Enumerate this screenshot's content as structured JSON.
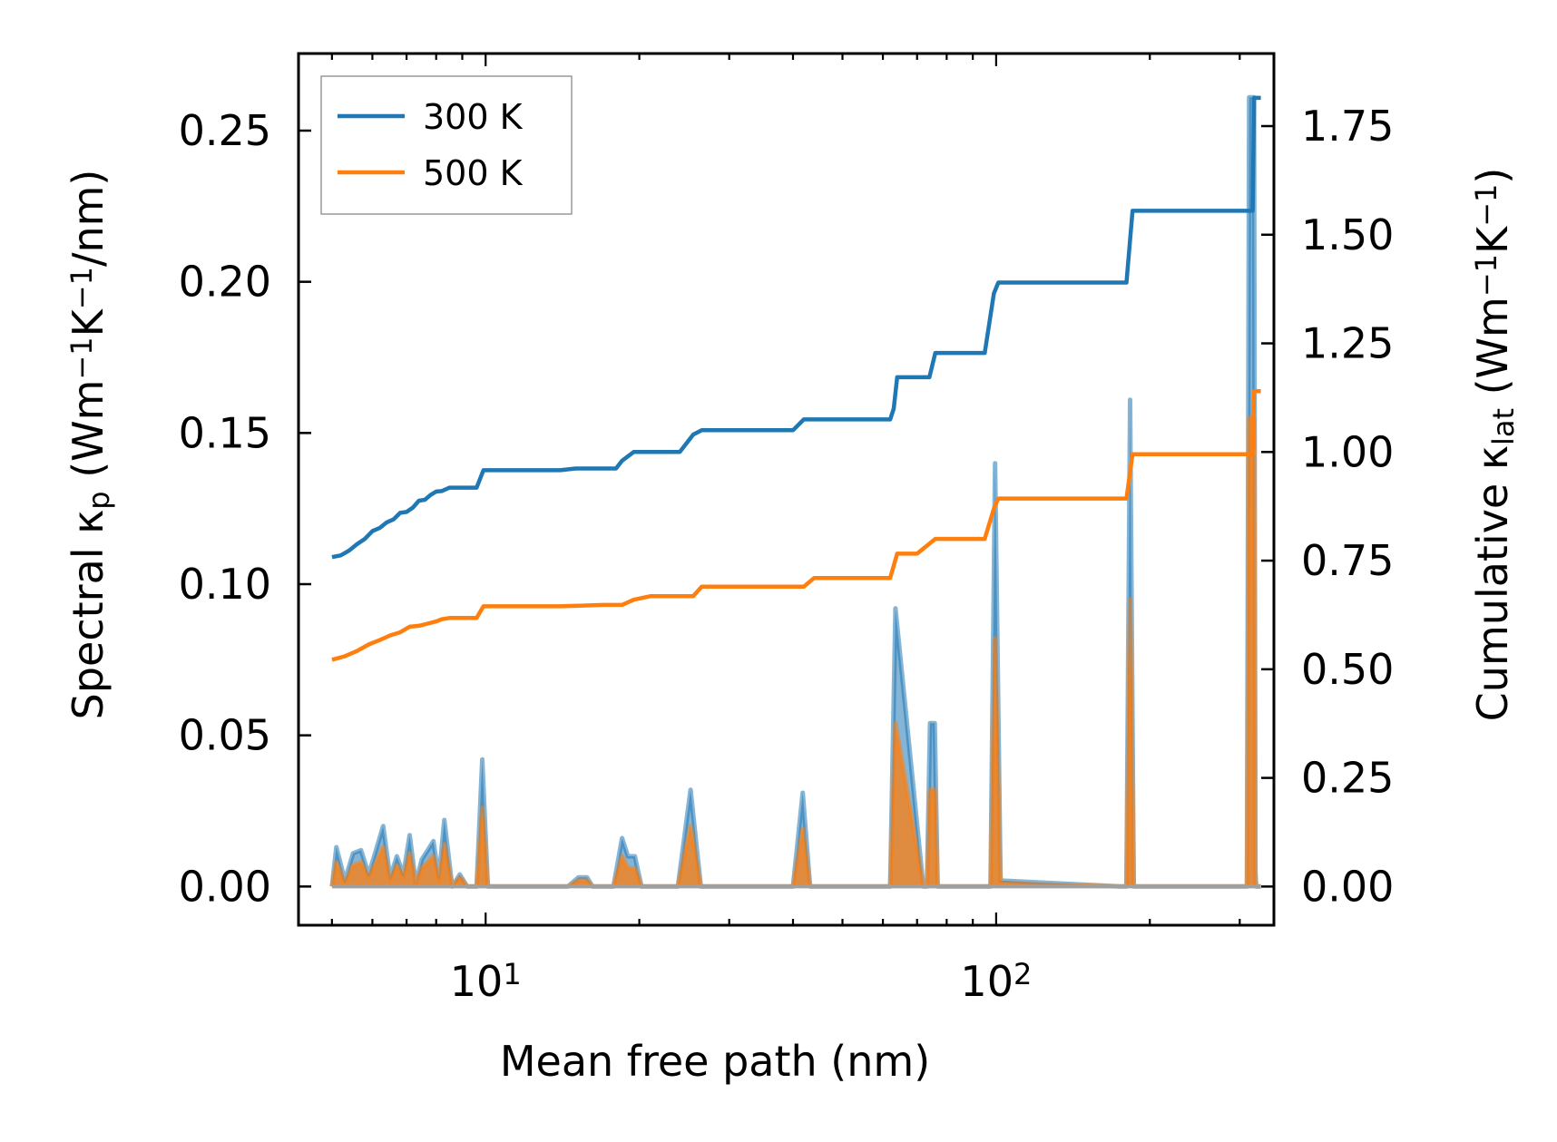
{
  "chart_data": {
    "type": "line",
    "title": "",
    "xlabel": "Mean free path (nm)",
    "xscale": "log",
    "xlim": [
      4.3,
      350
    ],
    "x_ticks": [
      {
        "value": 10,
        "base": "10",
        "exp": "1"
      },
      {
        "value": 100,
        "base": "10",
        "exp": "2"
      }
    ],
    "left_axis": {
      "label_main": "Spectral κ",
      "label_sub": "p",
      "label_units": " (Wm",
      "label_exp1": "−1",
      "label_k": "K",
      "label_exp2": "−1",
      "label_tail": "/nm)",
      "ylim": [
        -0.0128,
        0.2755
      ],
      "ticks": [
        "0.00",
        "0.05",
        "0.10",
        "0.15",
        "0.20",
        "0.25"
      ],
      "tick_values": [
        0.0,
        0.05,
        0.1,
        0.15,
        0.2,
        0.25
      ]
    },
    "right_axis": {
      "label_main": "Cumulative κ",
      "label_sub": "lat",
      "label_units": " (Wm",
      "label_exp1": "−1",
      "label_k": "K",
      "label_exp2": "−1",
      "label_tail": ")",
      "ylim": [
        -0.089,
        1.917
      ],
      "ticks": [
        "0.00",
        "0.25",
        "0.50",
        "0.75",
        "1.00",
        "1.25",
        "1.50",
        "1.75"
      ],
      "tick_values": [
        0.0,
        0.25,
        0.5,
        0.75,
        1.0,
        1.25,
        1.5,
        1.75
      ]
    },
    "legend": {
      "position": "top-left",
      "entries": [
        {
          "label": "300 K",
          "color": "#1f77b4"
        },
        {
          "label": "500 K",
          "color": "#ff7f0e"
        }
      ]
    },
    "series": [
      {
        "name": "300 K",
        "kind": "cumulative",
        "axis": "right",
        "color": "#1f77b4",
        "x": [
          5,
          5.2,
          5.4,
          5.6,
          5.8,
          6,
          6.2,
          6.4,
          6.6,
          6.8,
          7,
          7.2,
          7.4,
          7.6,
          7.8,
          8,
          8.2,
          8.5,
          8.8,
          9.2,
          9.6,
          9.9,
          10.3,
          12,
          14,
          15,
          17,
          18,
          18.5,
          19.5,
          21,
          24,
          25.5,
          26.5,
          28,
          35,
          40,
          42,
          44,
          50,
          55,
          62,
          63,
          64,
          70,
          74,
          76,
          78,
          85,
          95,
          99,
          101,
          104,
          120,
          150,
          180,
          185,
          195,
          250,
          300,
          318,
          320,
          330
        ],
        "values": [
          0.758,
          0.762,
          0.773,
          0.788,
          0.8,
          0.818,
          0.825,
          0.838,
          0.845,
          0.86,
          0.862,
          0.872,
          0.888,
          0.89,
          0.901,
          0.909,
          0.91,
          0.918,
          0.918,
          0.918,
          0.918,
          0.958,
          0.958,
          0.958,
          0.958,
          0.962,
          0.962,
          0.962,
          0.98,
          1.0,
          1.0,
          1.0,
          1.04,
          1.05,
          1.05,
          1.05,
          1.05,
          1.075,
          1.075,
          1.075,
          1.075,
          1.075,
          1.1,
          1.172,
          1.172,
          1.172,
          1.228,
          1.228,
          1.228,
          1.228,
          1.365,
          1.39,
          1.39,
          1.39,
          1.39,
          1.39,
          1.555,
          1.555,
          1.555,
          1.555,
          1.555,
          1.815,
          1.815
        ]
      },
      {
        "name": "500 K",
        "kind": "cumulative",
        "axis": "right",
        "color": "#ff7f0e",
        "x": [
          5,
          5.3,
          5.6,
          5.9,
          6.2,
          6.5,
          6.8,
          7.1,
          7.4,
          7.7,
          8,
          8.2,
          8.5,
          9,
          9.6,
          9.9,
          10.3,
          14,
          17,
          18.5,
          19.5,
          21,
          24,
          25.5,
          26.5,
          35,
          42,
          44,
          55,
          62,
          64,
          70,
          76,
          85,
          95,
          99,
          101,
          150,
          180,
          185,
          250,
          318,
          320,
          330
        ],
        "values": [
          0.522,
          0.53,
          0.542,
          0.557,
          0.567,
          0.578,
          0.585,
          0.598,
          0.6,
          0.605,
          0.61,
          0.615,
          0.618,
          0.618,
          0.618,
          0.645,
          0.645,
          0.645,
          0.648,
          0.648,
          0.66,
          0.668,
          0.668,
          0.668,
          0.69,
          0.69,
          0.69,
          0.71,
          0.71,
          0.71,
          0.766,
          0.766,
          0.8,
          0.8,
          0.8,
          0.87,
          0.893,
          0.893,
          0.893,
          0.995,
          0.995,
          0.995,
          1.14,
          1.14
        ]
      },
      {
        "name": "300 K spectral",
        "kind": "spectral",
        "axis": "left",
        "color": "#1f77b4",
        "x": [
          5,
          5.1,
          5.3,
          5.5,
          5.7,
          5.9,
          6.1,
          6.3,
          6.5,
          6.7,
          6.9,
          7.1,
          7.3,
          7.5,
          7.7,
          7.9,
          8.1,
          8.3,
          8.6,
          8.9,
          9.2,
          9.6,
          9.85,
          10.1,
          10.4,
          14.5,
          15.2,
          15.8,
          16.2,
          17.8,
          18.5,
          19,
          19.6,
          20.2,
          23.8,
          25.2,
          26.4,
          40,
          41.8,
          43.2,
          60,
          62,
          63.5,
          72,
          73.2,
          74.2,
          75.8,
          76.8,
          94,
          97.5,
          99.5,
          102,
          175,
          180,
          183,
          186,
          300,
          310,
          313,
          318,
          320,
          322,
          323,
          324,
          330
        ],
        "values": [
          0.0,
          0.013,
          0.002,
          0.011,
          0.012,
          0.004,
          0.012,
          0.02,
          0.003,
          0.01,
          0.004,
          0.017,
          0.001,
          0.009,
          0.012,
          0.015,
          0.003,
          0.022,
          0.0,
          0.004,
          0.0,
          0.0,
          0.042,
          0.0,
          0.0,
          0.0,
          0.003,
          0.003,
          0.0,
          0.0,
          0.016,
          0.01,
          0.01,
          0.0,
          0.0,
          0.032,
          0.0,
          0.0,
          0.031,
          0.0,
          0.0,
          0.0,
          0.092,
          0.0,
          0.0,
          0.054,
          0.054,
          0.0,
          0.0,
          0.0,
          0.14,
          0.002,
          0.0,
          0.0,
          0.161,
          0.0,
          0.0,
          0.0,
          0.261,
          0.261,
          0.261,
          0.005,
          0.0,
          0.0,
          0.0
        ]
      },
      {
        "name": "500 K spectral",
        "kind": "spectral",
        "axis": "left",
        "color": "#ff7f0e",
        "x": [
          5,
          5.1,
          5.3,
          5.5,
          5.7,
          5.9,
          6.1,
          6.3,
          6.5,
          6.7,
          6.9,
          7.1,
          7.3,
          7.5,
          7.7,
          7.9,
          8.1,
          8.3,
          8.6,
          8.9,
          9.2,
          9.6,
          9.85,
          10.1,
          10.4,
          14.5,
          15.2,
          15.8,
          16.2,
          17.8,
          18.5,
          19,
          19.6,
          20.2,
          23.8,
          25.2,
          26.4,
          40,
          41.8,
          43.2,
          60,
          62,
          63.5,
          72,
          73.2,
          74.2,
          75.8,
          76.8,
          94,
          97.5,
          99.5,
          102,
          175,
          180,
          183,
          186,
          300,
          310,
          313,
          318,
          320,
          322,
          323,
          324,
          330
        ],
        "values": [
          0.0,
          0.008,
          0.001,
          0.007,
          0.008,
          0.003,
          0.008,
          0.013,
          0.002,
          0.007,
          0.003,
          0.011,
          0.001,
          0.006,
          0.008,
          0.01,
          0.002,
          0.014,
          0.0,
          0.003,
          0.0,
          0.0,
          0.026,
          0.0,
          0.0,
          0.0,
          0.002,
          0.002,
          0.0,
          0.0,
          0.01,
          0.006,
          0.006,
          0.0,
          0.0,
          0.02,
          0.0,
          0.0,
          0.019,
          0.0,
          0.0,
          0.0,
          0.054,
          0.0,
          0.0,
          0.032,
          0.032,
          0.0,
          0.0,
          0.0,
          0.082,
          0.001,
          0.0,
          0.0,
          0.095,
          0.0,
          0.0,
          0.0,
          0.155,
          0.155,
          0.155,
          0.003,
          0.0,
          0.0,
          0.0
        ]
      }
    ]
  }
}
